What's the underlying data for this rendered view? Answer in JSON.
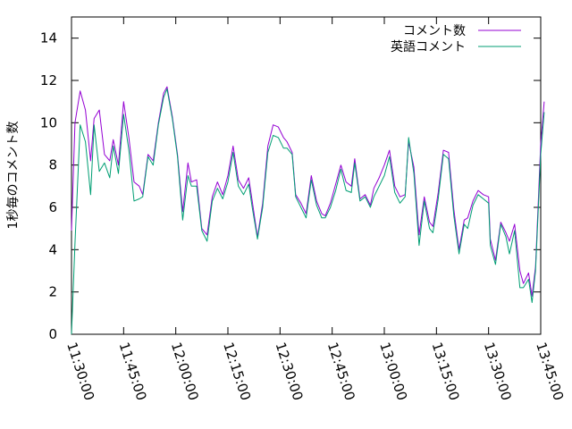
{
  "chart_data": {
    "type": "line",
    "title": "",
    "xlabel": "",
    "ylabel": "1秒毎のコメント数",
    "xlim": [
      "11:30:00",
      "13:45:00"
    ],
    "x_ticks": [
      "11:30:00",
      "11:45:00",
      "12:00:00",
      "12:15:00",
      "12:30:00",
      "12:45:00",
      "13:00:00",
      "13:15:00",
      "13:30:00",
      "13:45:00"
    ],
    "ylim": [
      0,
      15
    ],
    "y_ticks": [
      0,
      2,
      4,
      6,
      8,
      10,
      12,
      14
    ],
    "grid": false,
    "legend_position": "top-right",
    "series": [
      {
        "name": "コメント数",
        "color": "#9400d3",
        "points": [
          [
            "11:30:00",
            4.9
          ],
          [
            "11:31:00",
            10.0
          ],
          [
            "11:32:30",
            11.5
          ],
          [
            "11:34:00",
            10.6
          ],
          [
            "11:35:30",
            8.2
          ],
          [
            "11:36:30",
            10.2
          ],
          [
            "11:38:00",
            10.6
          ],
          [
            "11:39:30",
            8.5
          ],
          [
            "11:41:00",
            8.2
          ],
          [
            "11:42:00",
            9.2
          ],
          [
            "11:43:30",
            8.0
          ],
          [
            "11:45:00",
            11.0
          ],
          [
            "11:46:30",
            9.3
          ],
          [
            "11:48:00",
            7.2
          ],
          [
            "11:49:30",
            7.0
          ],
          [
            "11:50:30",
            6.6
          ],
          [
            "11:52:00",
            8.5
          ],
          [
            "11:53:30",
            8.2
          ],
          [
            "11:55:00",
            10.0
          ],
          [
            "11:56:30",
            11.4
          ],
          [
            "11:57:30",
            11.7
          ],
          [
            "11:59:00",
            10.3
          ],
          [
            "12:00:30",
            8.5
          ],
          [
            "12:02:00",
            5.8
          ],
          [
            "12:03:30",
            8.1
          ],
          [
            "12:04:30",
            7.2
          ],
          [
            "12:06:00",
            7.3
          ],
          [
            "12:07:30",
            5.0
          ],
          [
            "12:09:00",
            4.7
          ],
          [
            "12:10:30",
            6.5
          ],
          [
            "12:12:00",
            7.2
          ],
          [
            "12:13:30",
            6.6
          ],
          [
            "12:15:00",
            7.5
          ],
          [
            "12:16:30",
            8.9
          ],
          [
            "12:18:00",
            7.3
          ],
          [
            "12:19:30",
            6.9
          ],
          [
            "12:21:00",
            7.4
          ],
          [
            "12:22:00",
            6.3
          ],
          [
            "12:23:30",
            4.6
          ],
          [
            "12:25:00",
            6.2
          ],
          [
            "12:26:30",
            8.9
          ],
          [
            "12:28:00",
            9.9
          ],
          [
            "12:29:30",
            9.8
          ],
          [
            "12:31:00",
            9.3
          ],
          [
            "12:32:00",
            9.1
          ],
          [
            "12:33:30",
            8.6
          ],
          [
            "12:34:30",
            6.6
          ],
          [
            "12:36:00",
            6.2
          ],
          [
            "12:37:30",
            5.7
          ],
          [
            "12:39:00",
            7.5
          ],
          [
            "12:40:30",
            6.3
          ],
          [
            "12:42:00",
            5.7
          ],
          [
            "12:43:00",
            5.6
          ],
          [
            "12:44:30",
            6.2
          ],
          [
            "12:46:00",
            7.1
          ],
          [
            "12:47:30",
            8.0
          ],
          [
            "12:49:00",
            7.2
          ],
          [
            "12:50:30",
            7.0
          ],
          [
            "12:51:30",
            8.3
          ],
          [
            "12:53:00",
            6.4
          ],
          [
            "12:54:30",
            6.6
          ],
          [
            "12:56:00",
            6.1
          ],
          [
            "12:57:00",
            6.9
          ],
          [
            "12:58:30",
            7.4
          ],
          [
            "13:00:00",
            8.0
          ],
          [
            "13:01:30",
            8.7
          ],
          [
            "13:03:00",
            7.0
          ],
          [
            "13:04:30",
            6.5
          ],
          [
            "13:06:00",
            6.6
          ],
          [
            "13:07:00",
            9.1
          ],
          [
            "13:08:30",
            7.9
          ],
          [
            "13:10:00",
            4.7
          ],
          [
            "13:11:30",
            6.5
          ],
          [
            "13:13:00",
            5.3
          ],
          [
            "13:14:00",
            5.1
          ],
          [
            "13:15:30",
            6.7
          ],
          [
            "13:17:00",
            8.7
          ],
          [
            "13:18:30",
            8.6
          ],
          [
            "13:20:00",
            5.9
          ],
          [
            "13:21:30",
            4.0
          ],
          [
            "13:23:00",
            5.4
          ],
          [
            "13:24:00",
            5.5
          ],
          [
            "13:25:30",
            6.3
          ],
          [
            "13:27:00",
            6.8
          ],
          [
            "13:28:30",
            6.6
          ],
          [
            "13:30:00",
            6.5
          ],
          [
            "13:30:30",
            4.5
          ],
          [
            "13:32:00",
            3.5
          ],
          [
            "13:33:30",
            5.3
          ],
          [
            "13:35:00",
            4.8
          ],
          [
            "13:36:00",
            4.4
          ],
          [
            "13:37:30",
            5.2
          ],
          [
            "13:39:00",
            3.0
          ],
          [
            "13:40:00",
            2.4
          ],
          [
            "13:41:30",
            2.9
          ],
          [
            "13:42:30",
            1.8
          ],
          [
            "13:43:30",
            3.2
          ],
          [
            "13:45:00",
            9.0
          ],
          [
            "13:46:00",
            11.0
          ]
        ]
      },
      {
        "name": "英語コメント",
        "color": "#009e73",
        "points": [
          [
            "11:30:00",
            0.0
          ],
          [
            "11:31:00",
            4.3
          ],
          [
            "11:32:30",
            9.9
          ],
          [
            "11:34:00",
            9.1
          ],
          [
            "11:35:30",
            6.6
          ],
          [
            "11:36:30",
            9.9
          ],
          [
            "11:38:00",
            7.7
          ],
          [
            "11:39:30",
            8.1
          ],
          [
            "11:41:00",
            7.4
          ],
          [
            "11:42:00",
            8.9
          ],
          [
            "11:43:30",
            7.6
          ],
          [
            "11:45:00",
            10.4
          ],
          [
            "11:46:30",
            8.7
          ],
          [
            "11:48:00",
            6.3
          ],
          [
            "11:49:30",
            6.4
          ],
          [
            "11:50:30",
            6.5
          ],
          [
            "11:52:00",
            8.4
          ],
          [
            "11:53:30",
            8.0
          ],
          [
            "11:55:00",
            9.9
          ],
          [
            "11:56:30",
            11.2
          ],
          [
            "11:57:30",
            11.6
          ],
          [
            "11:59:00",
            10.2
          ],
          [
            "12:00:30",
            8.4
          ],
          [
            "12:02:00",
            5.4
          ],
          [
            "12:03:30",
            7.5
          ],
          [
            "12:04:30",
            7.0
          ],
          [
            "12:06:00",
            7.0
          ],
          [
            "12:07:30",
            4.9
          ],
          [
            "12:09:00",
            4.4
          ],
          [
            "12:10:30",
            6.3
          ],
          [
            "12:12:00",
            6.9
          ],
          [
            "12:13:30",
            6.4
          ],
          [
            "12:15:00",
            7.2
          ],
          [
            "12:16:30",
            8.6
          ],
          [
            "12:18:00",
            7.0
          ],
          [
            "12:19:30",
            6.6
          ],
          [
            "12:21:00",
            7.1
          ],
          [
            "12:22:00",
            6.0
          ],
          [
            "12:23:30",
            4.5
          ],
          [
            "12:25:00",
            6.0
          ],
          [
            "12:26:30",
            8.6
          ],
          [
            "12:28:00",
            9.4
          ],
          [
            "12:29:30",
            9.3
          ],
          [
            "12:31:00",
            8.8
          ],
          [
            "12:32:00",
            8.8
          ],
          [
            "12:33:30",
            8.5
          ],
          [
            "12:34:30",
            6.5
          ],
          [
            "12:36:00",
            6.0
          ],
          [
            "12:37:30",
            5.5
          ],
          [
            "12:39:00",
            7.3
          ],
          [
            "12:40:30",
            6.1
          ],
          [
            "12:42:00",
            5.5
          ],
          [
            "12:43:00",
            5.5
          ],
          [
            "12:44:30",
            6.0
          ],
          [
            "12:46:00",
            6.8
          ],
          [
            "12:47:30",
            7.8
          ],
          [
            "12:49:00",
            6.8
          ],
          [
            "12:50:30",
            6.7
          ],
          [
            "12:51:30",
            8.1
          ],
          [
            "12:53:00",
            6.3
          ],
          [
            "12:54:30",
            6.5
          ],
          [
            "12:56:00",
            6.0
          ],
          [
            "12:57:00",
            6.5
          ],
          [
            "12:58:30",
            7.0
          ],
          [
            "13:00:00",
            7.5
          ],
          [
            "13:01:30",
            8.4
          ],
          [
            "13:03:00",
            6.7
          ],
          [
            "13:04:30",
            6.2
          ],
          [
            "13:06:00",
            6.5
          ],
          [
            "13:07:00",
            9.3
          ],
          [
            "13:08:30",
            7.6
          ],
          [
            "13:10:00",
            4.2
          ],
          [
            "13:11:30",
            6.3
          ],
          [
            "13:13:00",
            5.0
          ],
          [
            "13:14:00",
            4.8
          ],
          [
            "13:15:30",
            6.4
          ],
          [
            "13:17:00",
            8.5
          ],
          [
            "13:18:30",
            8.3
          ],
          [
            "13:20:00",
            5.6
          ],
          [
            "13:21:30",
            3.8
          ],
          [
            "13:23:00",
            5.2
          ],
          [
            "13:24:00",
            5.0
          ],
          [
            "13:25:30",
            6.1
          ],
          [
            "13:27:00",
            6.6
          ],
          [
            "13:28:30",
            6.4
          ],
          [
            "13:30:00",
            6.2
          ],
          [
            "13:30:30",
            4.2
          ],
          [
            "13:32:00",
            3.3
          ],
          [
            "13:33:30",
            5.2
          ],
          [
            "13:35:00",
            4.6
          ],
          [
            "13:36:00",
            3.8
          ],
          [
            "13:37:30",
            4.9
          ],
          [
            "13:39:00",
            2.2
          ],
          [
            "13:40:00",
            2.2
          ],
          [
            "13:41:30",
            2.6
          ],
          [
            "13:42:30",
            1.5
          ],
          [
            "13:43:30",
            3.0
          ],
          [
            "13:45:00",
            8.5
          ],
          [
            "13:46:00",
            10.5
          ]
        ]
      }
    ]
  }
}
